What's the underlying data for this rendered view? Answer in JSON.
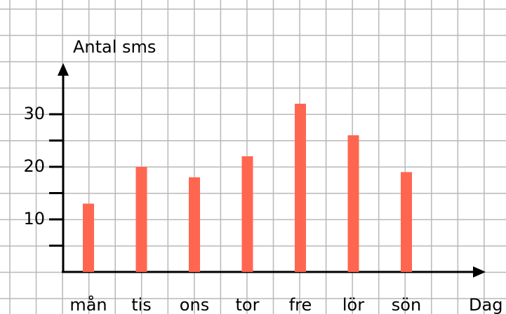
{
  "chart_data": {
    "type": "bar",
    "y_label": "Antal sms",
    "x_label": "Dag",
    "categories": [
      "mån",
      "tis",
      "ons",
      "tor",
      "fre",
      "lör",
      "sön"
    ],
    "values": [
      13,
      20,
      18,
      22,
      32,
      26,
      19
    ],
    "color": "#ff6650",
    "ylim": [
      0,
      40
    ],
    "yticks": [
      10,
      20,
      30
    ],
    "yminor_ticks": [
      5,
      15,
      25
    ],
    "grid": true
  }
}
